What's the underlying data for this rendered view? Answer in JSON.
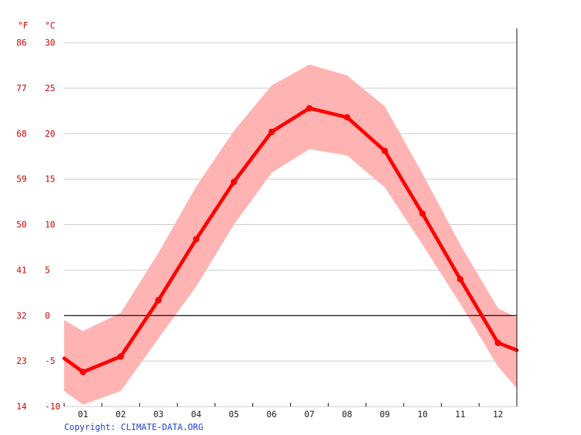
{
  "units": {
    "fahrenheit": "°F",
    "celsius": "°C"
  },
  "copyright": "Copyright: CLIMATE-DATA.ORG",
  "colors": {
    "line": "#ff0000",
    "band": "#ffb3b3",
    "tick_text": "#d40000",
    "copyright": "#1a3fd0"
  },
  "chart_data": {
    "type": "line",
    "title": "",
    "xlabel": "",
    "ylabel": "",
    "categories": [
      "01",
      "02",
      "03",
      "04",
      "05",
      "06",
      "07",
      "08",
      "09",
      "10",
      "11",
      "12"
    ],
    "series": [
      {
        "values": [
          -6.2,
          -4.5,
          1.7,
          8.4,
          14.7,
          20.2,
          22.8,
          21.8,
          18.1,
          11.2,
          4.0,
          -3.0
        ]
      }
    ],
    "band_low": [
      -8.3,
      -9.8,
      -8.3,
      -2.5,
      3.2,
      10.0,
      15.7,
      18.3,
      17.6,
      14.1,
      7.8,
      1.3,
      -5.6,
      -8.0
    ],
    "band_high": [
      -0.5,
      -1.7,
      0.3,
      6.9,
      14.2,
      20.3,
      25.3,
      27.6,
      26.4,
      23.0,
      15.6,
      7.8,
      0.8,
      -0.2
    ],
    "line_edges": [
      -4.7,
      -3.8
    ],
    "ylim": [
      -10,
      30
    ],
    "y_ticks_c": [
      30,
      25,
      20,
      15,
      10,
      5,
      0,
      -5,
      -10
    ],
    "y_ticks_f": [
      "86",
      "77",
      "68",
      "59",
      "50",
      "41",
      "32",
      "23",
      "14"
    ],
    "grid": true,
    "zero_line": true
  }
}
